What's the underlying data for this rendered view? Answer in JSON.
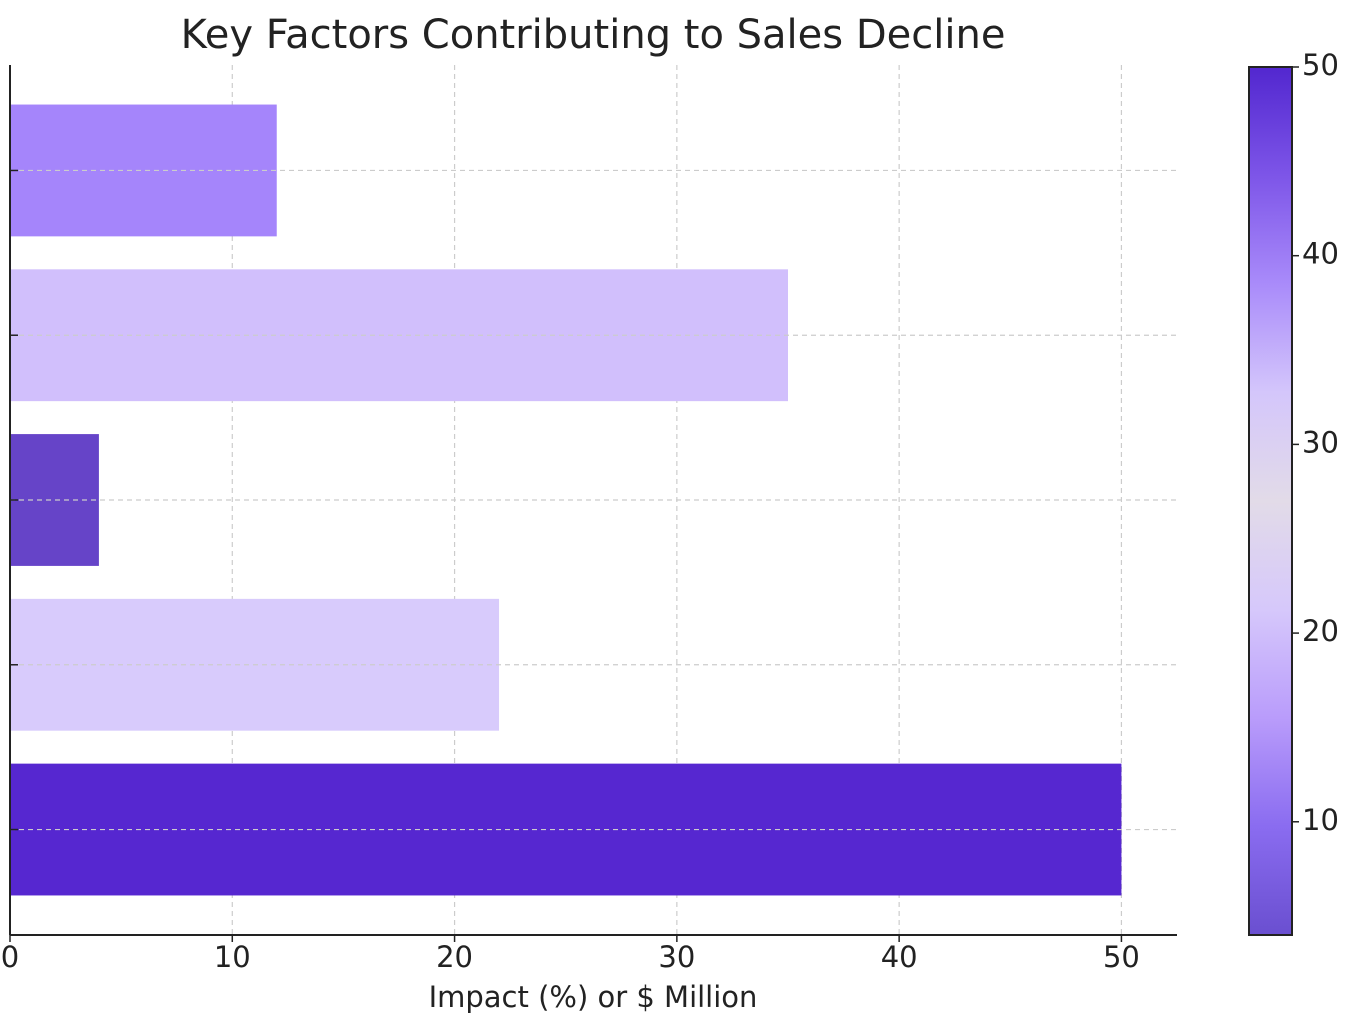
{
  "chart_data": {
    "type": "bar",
    "orientation": "horizontal",
    "title": "Key Factors Contributing to Sales Decline",
    "x_label": "Impact (%) or $ Million",
    "categories": [
      null,
      null,
      null,
      null,
      null
    ],
    "values": [
      12,
      35,
      4,
      22,
      50
    ],
    "colors": [
      "#a585fb",
      "#d1bffc",
      "#6644c8",
      "#d8cbfc",
      "#5627d0"
    ],
    "xlim": [
      0,
      52.5
    ],
    "xticks": [
      0,
      10,
      20,
      30,
      40,
      50
    ],
    "grid": true,
    "colorbar": {
      "lim": [
        4,
        50
      ],
      "ticks": [
        10,
        20,
        30,
        40,
        50
      ],
      "colors": [
        "#6a4fd0",
        "#8a6cf0",
        "#b99cfb",
        "#d6c8fb",
        "#e2dbe8",
        "#d4c6fb",
        "#a98bfa",
        "#7d55e8",
        "#5227cf"
      ]
    }
  }
}
